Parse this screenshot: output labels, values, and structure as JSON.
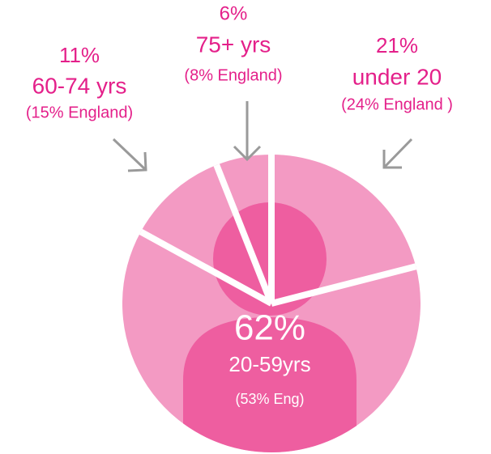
{
  "chart_data": {
    "type": "pie",
    "categories": [
      "under 20",
      "20-59yrs",
      "60-74 yrs",
      "75+ yrs"
    ],
    "values": [
      21,
      62,
      11,
      6
    ],
    "value_labels": [
      "21%",
      "62%",
      "11%",
      "6%"
    ],
    "annotations": [
      "(24% England )",
      "(53% Eng)",
      "(15% England)",
      "(8% England)"
    ],
    "color": "#f39ac3"
  }
}
